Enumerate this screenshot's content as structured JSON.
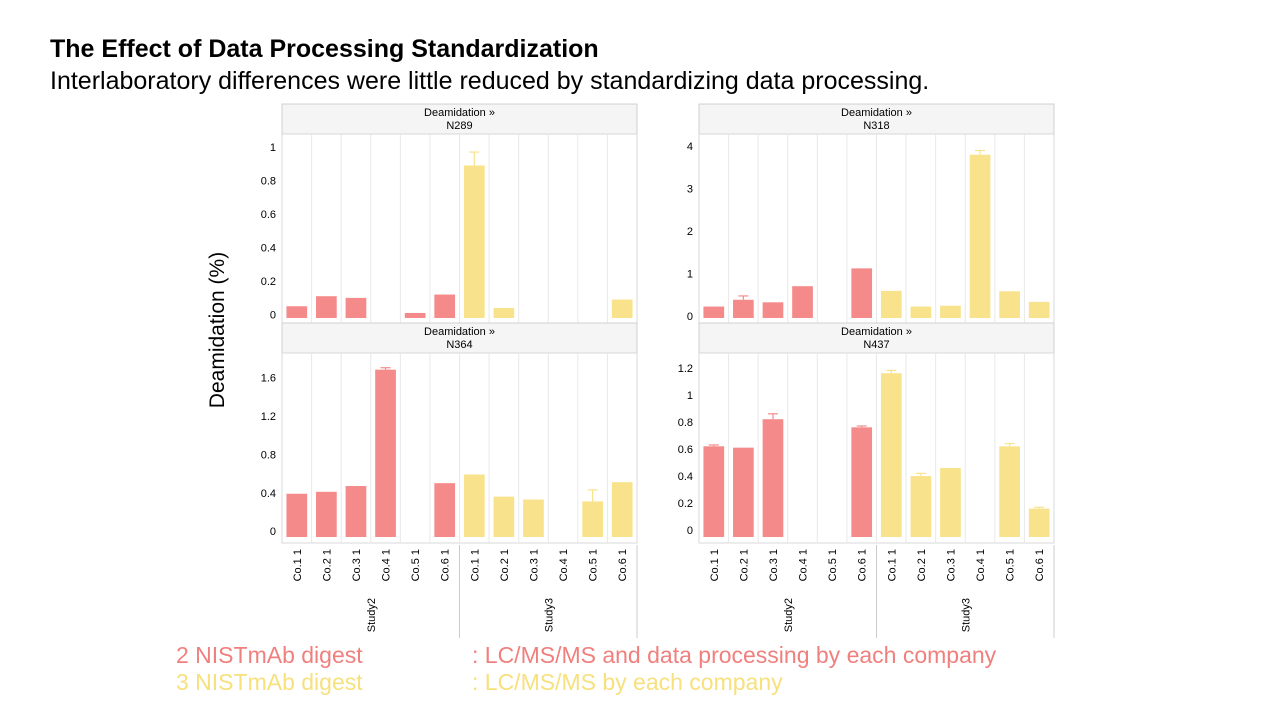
{
  "header": {
    "title": "The Effect of Data Processing Standardization",
    "subtitle": "Interlaboratory differences were little reduced by standardizing data processing."
  },
  "y_axis_label": "Deamidation (%)",
  "legend": [
    {
      "label": "2 NISTmAb digest",
      "desc": ": LC/MS/MS and data processing by each company",
      "color": "#f0807e"
    },
    {
      "label": "3 NISTmAb digest",
      "desc": ": LC/MS/MS by each company",
      "color": "#f7e07e"
    }
  ],
  "colors": {
    "study2": "#f48b8a",
    "study3": "#f8e38c",
    "error_study2": "#f48b8a",
    "error_study3": "#f8e38c"
  },
  "chart_data": [
    {
      "type": "bar",
      "panel": "top-left",
      "title_line1": "Deamidation »",
      "title_line2": "N289",
      "categories": [
        "Co.1 1",
        "Co.2 1",
        "Co.3 1",
        "Co.4 1",
        "Co.5 1",
        "Co.6 1",
        "Co.1 1",
        "Co.2 1",
        "Co.3 1",
        "Co.4 1",
        "Co.5 1",
        "Co.6 1"
      ],
      "groups": [
        "Study2",
        "Study3"
      ],
      "study": [
        2,
        2,
        2,
        2,
        2,
        2,
        3,
        3,
        3,
        3,
        3,
        3
      ],
      "values": [
        0.05,
        0.11,
        0.1,
        null,
        0.01,
        0.12,
        0.89,
        0.04,
        null,
        null,
        null,
        0.09
      ],
      "errors": [
        0,
        0,
        0,
        0,
        0,
        0,
        0.08,
        0,
        0,
        0,
        0,
        0
      ],
      "ylim": [
        -0.02,
        1.03
      ],
      "yticks": [
        0,
        0.2,
        0.4,
        0.6,
        0.8,
        1
      ],
      "ytick_labels": [
        "0",
        "0.2",
        "0.4",
        "0.6",
        "0.8",
        "1"
      ],
      "show_x_labels": false
    },
    {
      "type": "bar",
      "panel": "top-right",
      "title_line1": "Deamidation »",
      "title_line2": "N318",
      "categories": [
        "Co.1 1",
        "Co.2 1",
        "Co.3 1",
        "Co.4 1",
        "Co.5 1",
        "Co.6 1",
        "Co.1 1",
        "Co.2 1",
        "Co.3 1",
        "Co.4 1",
        "Co.5 1",
        "Co.6 1"
      ],
      "groups": [
        "Study2",
        "Study3"
      ],
      "study": [
        2,
        2,
        2,
        2,
        2,
        2,
        3,
        3,
        3,
        3,
        3,
        3
      ],
      "values": [
        0.22,
        0.38,
        0.32,
        0.7,
        null,
        1.12,
        0.59,
        0.22,
        0.24,
        3.8,
        0.58,
        0.33
      ],
      "errors": [
        0,
        0.09,
        0,
        0,
        0,
        0,
        0,
        0,
        0,
        0.1,
        0,
        0
      ],
      "ylim": [
        -0.05,
        4.1
      ],
      "yticks": [
        0,
        1,
        2,
        3,
        4
      ],
      "ytick_labels": [
        "0",
        "1",
        "2",
        "3",
        "4"
      ],
      "show_x_labels": false
    },
    {
      "type": "bar",
      "panel": "bottom-left",
      "title_line1": "Deamidation »",
      "title_line2": "N364",
      "categories": [
        "Co.1 1",
        "Co.2 1",
        "Co.3 1",
        "Co.4 1",
        "Co.5 1",
        "Co.6 1",
        "Co.1 1",
        "Co.2 1",
        "Co.3 1",
        "Co.4 1",
        "Co.5 1",
        "Co.6 1"
      ],
      "groups": [
        "Study2",
        "Study3"
      ],
      "study": [
        2,
        2,
        2,
        2,
        2,
        2,
        3,
        3,
        3,
        3,
        3,
        3
      ],
      "values": [
        0.39,
        0.41,
        0.47,
        1.68,
        null,
        0.5,
        0.59,
        0.36,
        0.33,
        null,
        0.31,
        0.51
      ],
      "errors": [
        0,
        0,
        0,
        0.02,
        0,
        0,
        0,
        0,
        0,
        0,
        0.12,
        0
      ],
      "ylim": [
        -0.06,
        1.77
      ],
      "yticks": [
        0,
        0.4,
        0.8,
        1.2,
        1.6
      ],
      "ytick_labels": [
        "0",
        "0.4",
        "0.8",
        "1.2",
        "1.6"
      ],
      "show_x_labels": true
    },
    {
      "type": "bar",
      "panel": "bottom-right",
      "title_line1": "Deamidation »",
      "title_line2": "N437",
      "categories": [
        "Co.1 1",
        "Co.2 1",
        "Co.3 1",
        "Co.4 1",
        "Co.5 1",
        "Co.6 1",
        "Co.1 1",
        "Co.2 1",
        "Co.3 1",
        "Co.4 1",
        "Co.5 1",
        "Co.6 1"
      ],
      "groups": [
        "Study2",
        "Study3"
      ],
      "study": [
        2,
        2,
        2,
        2,
        2,
        2,
        3,
        3,
        3,
        3,
        3,
        3
      ],
      "values": [
        0.62,
        0.61,
        0.82,
        null,
        null,
        0.76,
        1.16,
        0.4,
        0.46,
        null,
        0.62,
        0.16
      ],
      "errors": [
        0.01,
        0,
        0.04,
        0,
        0,
        0.01,
        0.02,
        0.02,
        0,
        0,
        0.02,
        0.01
      ],
      "ylim": [
        -0.05,
        1.25
      ],
      "yticks": [
        0,
        0.2,
        0.4,
        0.6,
        0.8,
        1,
        1.2
      ],
      "ytick_labels": [
        "0",
        "0.2",
        "0.4",
        "0.6",
        "0.8",
        "1",
        "1.2"
      ],
      "show_x_labels": true
    }
  ]
}
